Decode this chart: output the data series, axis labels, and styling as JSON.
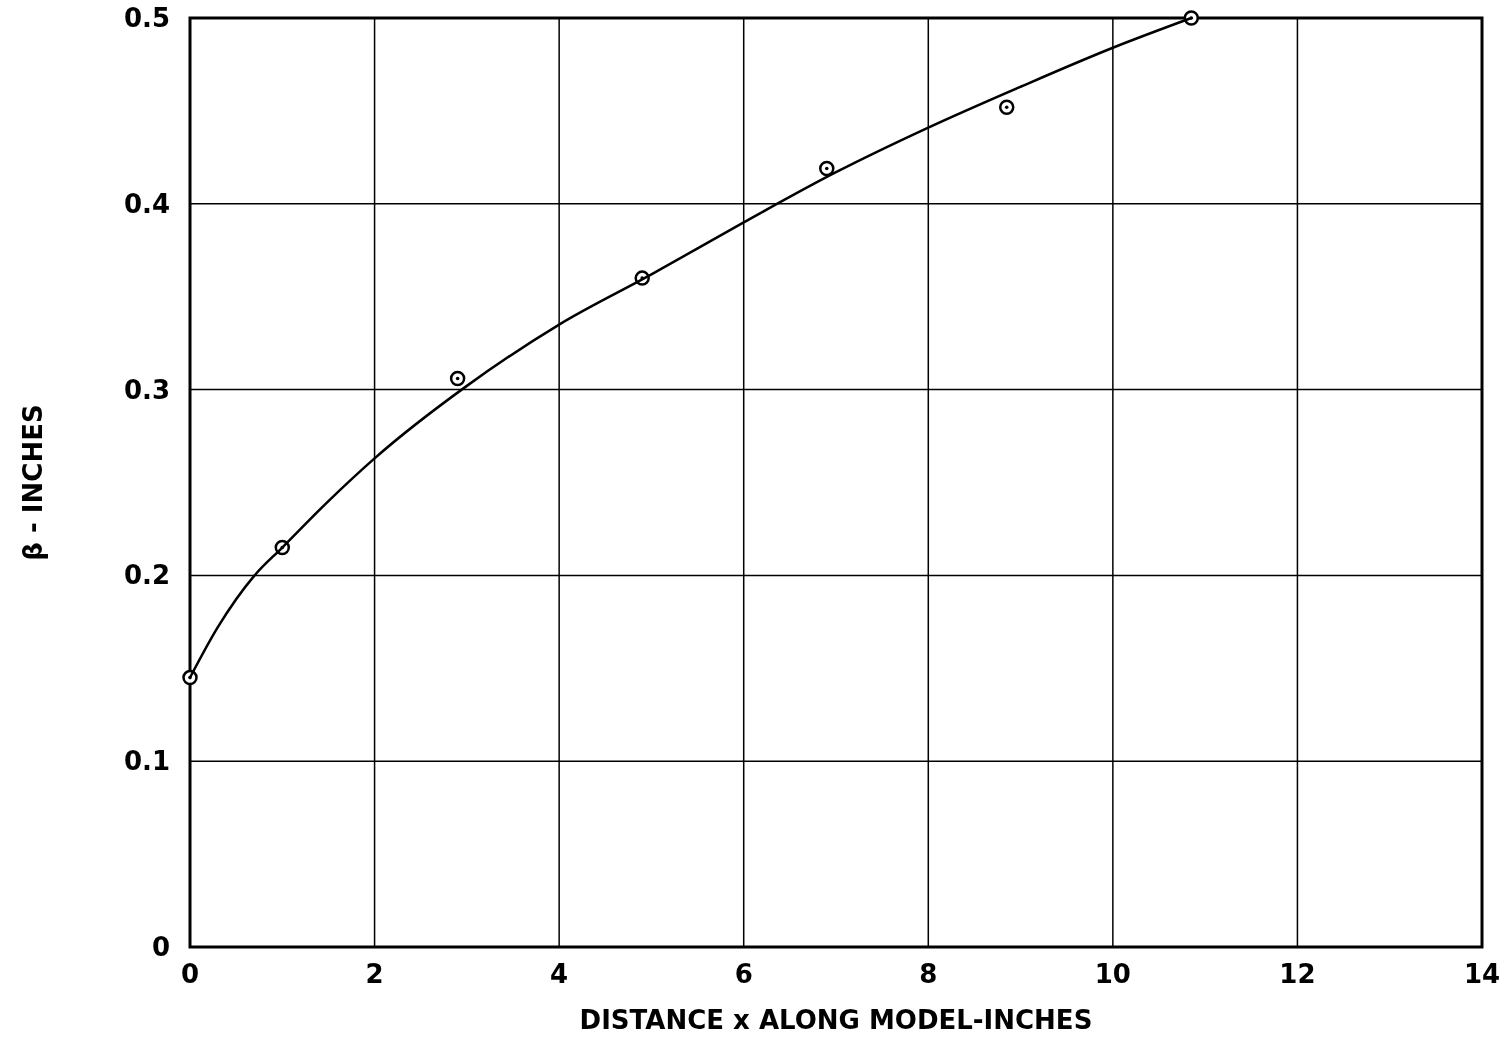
{
  "chart_data": {
    "type": "scatter",
    "xlabel": "DISTANCE x ALONG MODEL-INCHES",
    "ylabel": "β - INCHES",
    "xlim": [
      0,
      14
    ],
    "ylim": [
      0,
      0.5
    ],
    "xticks": [
      0,
      2,
      4,
      6,
      8,
      10,
      12,
      14
    ],
    "yticks": [
      0,
      0.1,
      0.2,
      0.3,
      0.4,
      0.5
    ],
    "grid": true,
    "series": [
      {
        "color": "#000000",
        "marker": "circle",
        "x": [
          0,
          1,
          2.9,
          4.9,
          6.9,
          8.85,
          10.85
        ],
        "values": [
          0.145,
          0.215,
          0.306,
          0.36,
          0.419,
          0.452,
          0.5
        ]
      },
      {
        "type": "line",
        "color": "#000000",
        "marker": "none",
        "line_style": "solid",
        "x": [
          0,
          0.3,
          0.7,
          1,
          1.5,
          2,
          3,
          4,
          5,
          6,
          7,
          8,
          9,
          10,
          10.85
        ],
        "values": [
          0.145,
          0.172,
          0.2,
          0.215,
          0.24,
          0.263,
          0.302,
          0.335,
          0.362,
          0.39,
          0.417,
          0.441,
          0.463,
          0.484,
          0.5
        ]
      }
    ]
  }
}
